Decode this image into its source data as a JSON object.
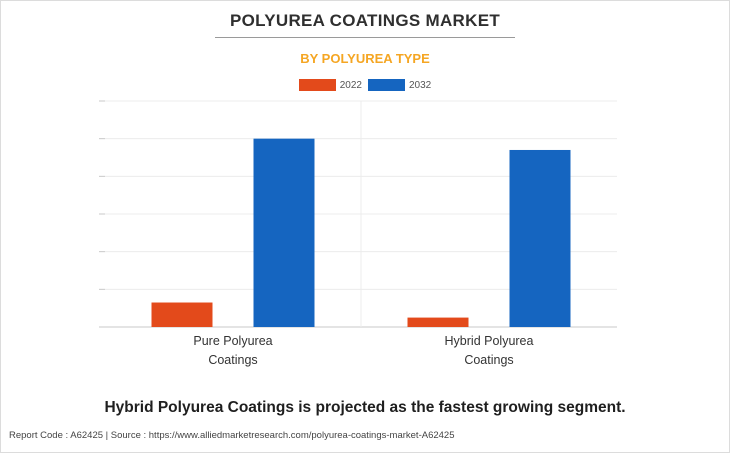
{
  "header": {
    "title": "POLYUREA COATINGS MARKET",
    "subtitle": "BY POLYUREA TYPE"
  },
  "colors": {
    "series_2022": "#e34a1b",
    "series_2032": "#1565c0",
    "subtitle": "#f5a623"
  },
  "chart_data": {
    "type": "bar",
    "categories": [
      [
        "Pure Polyurea",
        "Coatings"
      ],
      [
        "Hybrid Polyurea",
        "Coatings"
      ]
    ],
    "series": [
      {
        "name": "2022",
        "values": [
          0.13,
          0.05
        ]
      },
      {
        "name": "2032",
        "values": [
          1.0,
          0.94
        ]
      }
    ],
    "ylim": [
      0,
      1.2
    ],
    "yticks_count": 6,
    "grid": true,
    "legend": "top-center",
    "xlabel": "",
    "ylabel": ""
  },
  "footer": {
    "note": "Hybrid Polyurea Coatings is projected as the fastest growing segment.",
    "source": "Report Code : A62425  |  Source : https://www.alliedmarketresearch.com/polyurea-coatings-market-A62425"
  }
}
